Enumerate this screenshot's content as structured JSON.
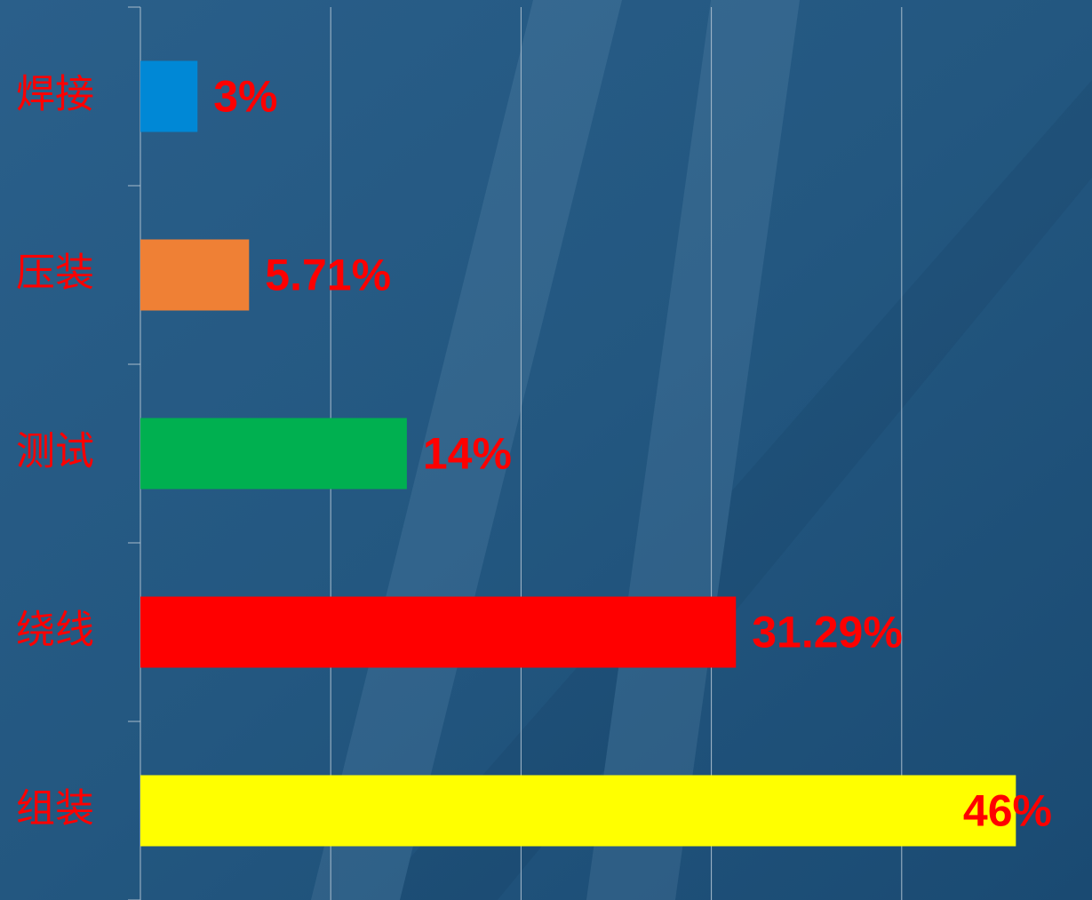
{
  "chart_data": {
    "type": "bar",
    "orientation": "horizontal",
    "categories": [
      "焊接",
      "压装",
      "测试",
      "绕线",
      "组装"
    ],
    "values": [
      3,
      5.71,
      14,
      31.29,
      46
    ],
    "value_labels": [
      "3%",
      "5.71%",
      "14%",
      "31.29%",
      "46%"
    ],
    "colors": [
      "#0088d6",
      "#ef8035",
      "#00b050",
      "#ff0000",
      "#ffff00"
    ],
    "xlim": [
      0,
      50
    ],
    "xticks": [
      0,
      10,
      20,
      30,
      40
    ],
    "grid": true
  }
}
